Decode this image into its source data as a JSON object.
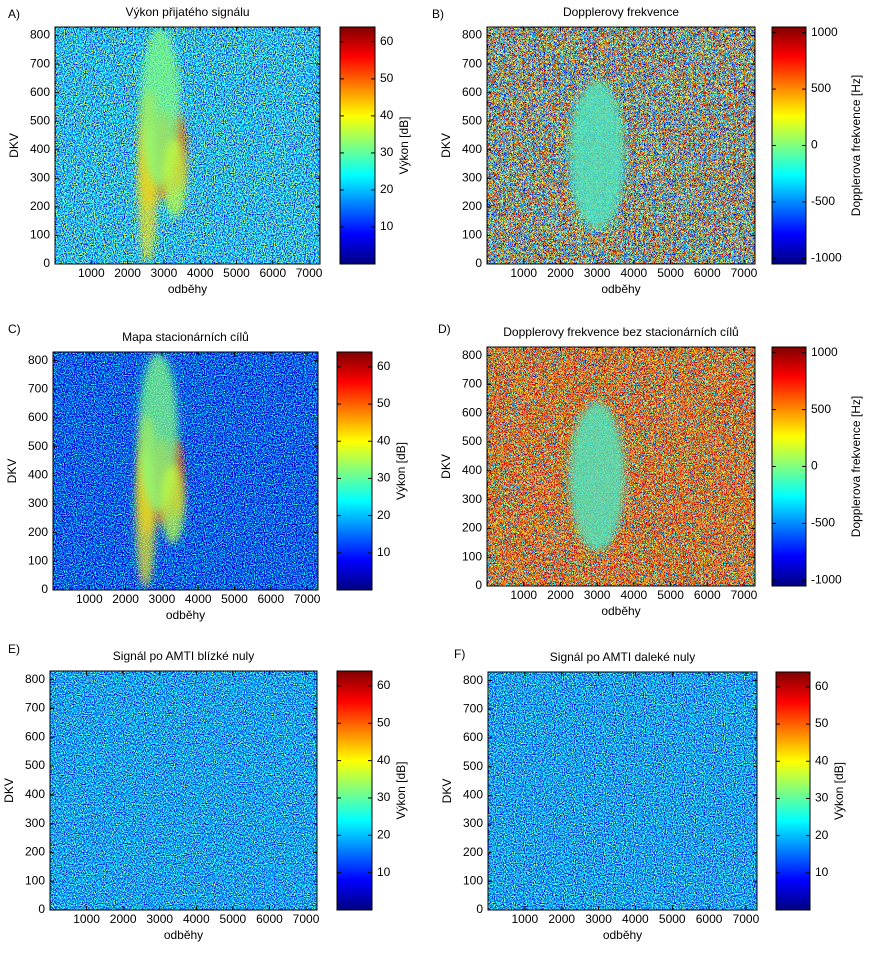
{
  "chart_data": [
    {
      "type": "heatmap",
      "label": "A)",
      "title": "Výkon přijatého signálu",
      "xlabel": "odběhy",
      "ylabel": "DKV",
      "xlim": [
        0,
        7300
      ],
      "xticks": [
        1000,
        2000,
        3000,
        4000,
        5000,
        6000,
        7000
      ],
      "ylim": [
        0,
        830
      ],
      "yticks": [
        0,
        100,
        200,
        300,
        400,
        500,
        600,
        700,
        800
      ],
      "colorbar": {
        "label": "Výkon [dB]",
        "lim": [
          0,
          64
        ],
        "ticks": [
          10,
          20,
          30,
          40,
          50,
          60
        ]
      }
    },
    {
      "type": "heatmap",
      "label": "B)",
      "title": "Dopplerovy frekvence",
      "xlabel": "odběhy",
      "ylabel": "DKV",
      "xlim": [
        0,
        7300
      ],
      "xticks": [
        1000,
        2000,
        3000,
        4000,
        5000,
        6000,
        7000
      ],
      "ylim": [
        0,
        830
      ],
      "yticks": [
        0,
        100,
        200,
        300,
        400,
        500,
        600,
        700,
        800
      ],
      "colorbar": {
        "label": "Dopplerova frekvence [Hz]",
        "lim": [
          -1050,
          1050
        ],
        "ticks": [
          -1000,
          -500,
          0,
          500,
          1000
        ]
      }
    },
    {
      "type": "heatmap",
      "label": "C)",
      "title": "Mapa stacionárních cílů",
      "xlabel": "odběhy",
      "ylabel": "DKV",
      "xlim": [
        0,
        7300
      ],
      "xticks": [
        1000,
        2000,
        3000,
        4000,
        5000,
        6000,
        7000
      ],
      "ylim": [
        0,
        830
      ],
      "yticks": [
        0,
        100,
        200,
        300,
        400,
        500,
        600,
        700,
        800
      ],
      "colorbar": {
        "label": "Výkon [dB]",
        "lim": [
          0,
          64
        ],
        "ticks": [
          10,
          20,
          30,
          40,
          50,
          60
        ]
      }
    },
    {
      "type": "heatmap",
      "label": "D)",
      "title": "Dopplerovy frekvence bez stacionárních cílů",
      "xlabel": "odběhy",
      "ylabel": "DKV",
      "xlim": [
        0,
        7300
      ],
      "xticks": [
        1000,
        2000,
        3000,
        4000,
        5000,
        6000,
        7000
      ],
      "ylim": [
        0,
        830
      ],
      "yticks": [
        0,
        100,
        200,
        300,
        400,
        500,
        600,
        700,
        800
      ],
      "colorbar": {
        "label": "Dopplerova frekvence [Hz]",
        "lim": [
          -1050,
          1050
        ],
        "ticks": [
          -1000,
          -500,
          0,
          500,
          1000
        ]
      }
    },
    {
      "type": "heatmap",
      "label": "E)",
      "title": "Signál po AMTI blízké nuly",
      "xlabel": "odběhy",
      "ylabel": "DKV",
      "xlim": [
        0,
        7300
      ],
      "xticks": [
        1000,
        2000,
        3000,
        4000,
        5000,
        6000,
        7000
      ],
      "ylim": [
        0,
        830
      ],
      "yticks": [
        0,
        100,
        200,
        300,
        400,
        500,
        600,
        700,
        800
      ],
      "colorbar": {
        "label": "Výkon [dB]",
        "lim": [
          0,
          64
        ],
        "ticks": [
          10,
          20,
          30,
          40,
          50,
          60
        ]
      }
    },
    {
      "type": "heatmap",
      "label": "F)",
      "title": "Signál po AMTI daleké nuly",
      "xlabel": "odběhy",
      "ylabel": "DKV",
      "xlim": [
        0,
        7300
      ],
      "xticks": [
        1000,
        2000,
        3000,
        4000,
        5000,
        6000,
        7000
      ],
      "ylim": [
        0,
        830
      ],
      "yticks": [
        0,
        100,
        200,
        300,
        400,
        500,
        600,
        700,
        800
      ],
      "colorbar": {
        "label": "Výkon [dB]",
        "lim": [
          0,
          64
        ],
        "ticks": [
          10,
          20,
          30,
          40,
          50,
          60
        ]
      }
    }
  ]
}
